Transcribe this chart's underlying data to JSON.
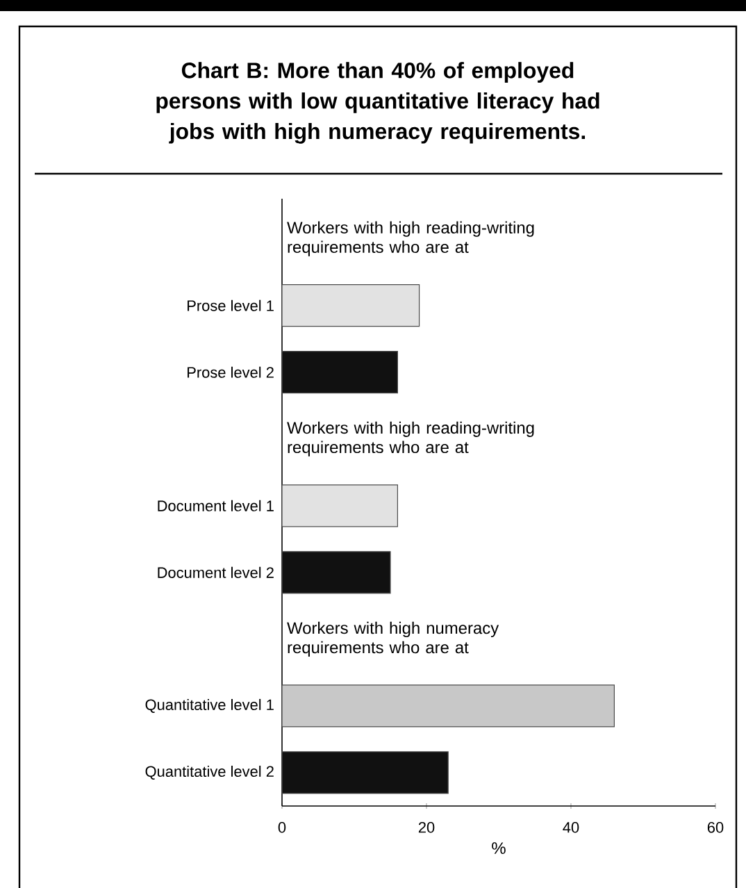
{
  "chart_data": {
    "type": "bar",
    "orientation": "horizontal",
    "title": "Chart  B: More than 40% of employed persons with low quantitative literacy had jobs with high numeracy requirements.",
    "xlabel": "%",
    "categories": [
      "Prose level 1",
      "Prose level 2",
      "Document level 1",
      "Document level 2",
      "Quantitative level 1",
      "Quantitative level 2"
    ],
    "values": [
      19,
      16,
      16,
      15,
      46,
      23
    ],
    "colors": [
      "#e2e2e2",
      "#111111",
      "#e2e2e2",
      "#111111",
      "#c8c8c8",
      "#111111"
    ],
    "annotations": [
      "Workers with high reading-writing requirements who are at",
      "Workers with high reading-writing requirements who are at",
      "Workers with high numeracy requirements who are at"
    ],
    "xlim": [
      0,
      60
    ],
    "xticks": [
      0,
      20,
      40,
      60
    ],
    "grid": false
  }
}
